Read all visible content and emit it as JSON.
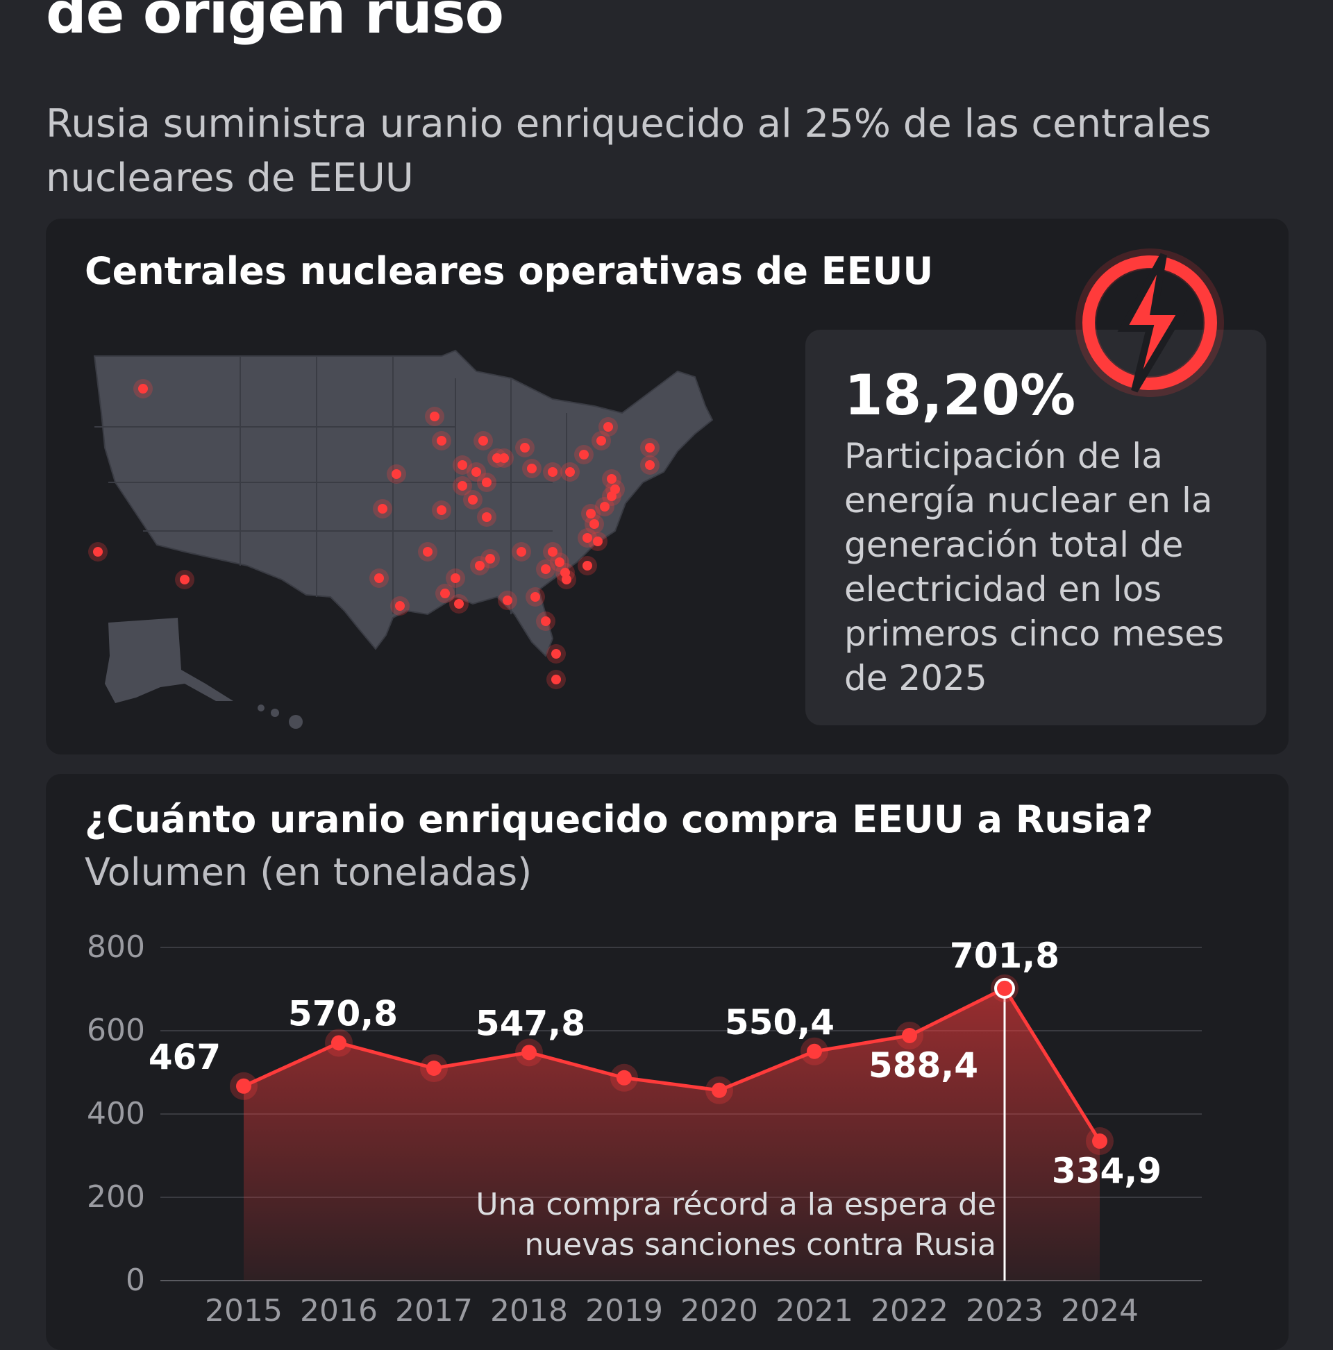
{
  "header": {
    "headline": "de origen ruso",
    "subtitle": "Rusia suministra uranio enriquecido al 25% de las centrales nucleares de EEUU"
  },
  "map_card": {
    "title": "Centrales nucleares operativas de EEUU",
    "stat_value": "18,20%",
    "stat_desc": "Participación de la energía nuclear en la generación total de electricidad en los primeros cinco meses de 2025",
    "icon": "lightning-bolt-icon",
    "plant_color": "#ff3b3b"
  },
  "chart_card": {
    "title": "¿Cuánto uranio enriquecido compra EEUU a Rusia?",
    "subtitle": "Volumen (en toneladas)",
    "annotation_line1": "Una compra récord a la espera de",
    "annotation_line2": "nuevas sanciones contra Rusia"
  },
  "chart_data": {
    "type": "area",
    "x": [
      "2015",
      "2016",
      "2017",
      "2018",
      "2019",
      "2020",
      "2021",
      "2022",
      "2023",
      "2024"
    ],
    "values": [
      467,
      570.8,
      510,
      547.8,
      487,
      457,
      550.4,
      588.4,
      701.8,
      334.9
    ],
    "data_labels": {
      "0": "467",
      "1": "570,8",
      "3": "547,8",
      "6": "550,4",
      "7": "588,4",
      "8": "701,8",
      "9": "334,9"
    },
    "yticks": [
      "0",
      "200",
      "400",
      "600",
      "800"
    ],
    "ylim": [
      0,
      800
    ],
    "highlight_index": 8,
    "color": "#ff3b3b",
    "grid": true
  }
}
